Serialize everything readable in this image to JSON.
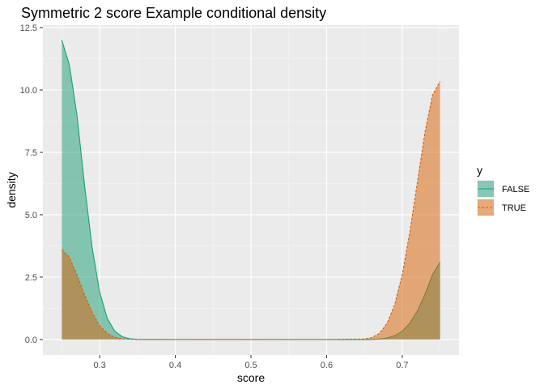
{
  "chart_data": {
    "type": "area",
    "title": "Symmetric 2 score Example conditional density",
    "xlabel": "score",
    "ylabel": "density",
    "xlim": [
      0.225,
      0.775
    ],
    "ylim": [
      -0.62,
      12.6
    ],
    "x_ticks": [
      0.3,
      0.4,
      0.5,
      0.6,
      0.7
    ],
    "x_tick_labels": [
      "0.3",
      "0.4",
      "0.5",
      "0.6",
      "0.7"
    ],
    "y_ticks": [
      0,
      2.5,
      5,
      7.5,
      10,
      12.5
    ],
    "y_tick_labels": [
      "0.0",
      "2.5",
      "5.0",
      "7.5",
      "10.0",
      "12.5"
    ],
    "grid": true,
    "legend": {
      "title": "y",
      "placement": "right",
      "entries": [
        "FALSE",
        "TRUE"
      ]
    },
    "series": [
      {
        "name": "FALSE",
        "line_style": "solid",
        "line_color": "#1b9e77",
        "fill_color": "#1b9e77",
        "x": [
          0.25,
          0.26,
          0.27,
          0.28,
          0.29,
          0.3,
          0.31,
          0.32,
          0.33,
          0.34,
          0.35,
          0.36,
          0.4,
          0.5,
          0.6,
          0.65,
          0.66,
          0.67,
          0.68,
          0.69,
          0.7,
          0.71,
          0.72,
          0.73,
          0.74,
          0.75
        ],
        "values": [
          12.0,
          11.0,
          9.0,
          6.2,
          3.7,
          1.9,
          0.85,
          0.33,
          0.11,
          0.03,
          0.008,
          0.002,
          0.0,
          0.0,
          0.0,
          0.0,
          0.004,
          0.02,
          0.06,
          0.15,
          0.33,
          0.65,
          1.15,
          1.8,
          2.6,
          3.1
        ]
      },
      {
        "name": "TRUE",
        "line_style": "dashed",
        "line_color": "#d95f02",
        "fill_color": "#d95f02",
        "x": [
          0.25,
          0.26,
          0.27,
          0.28,
          0.29,
          0.3,
          0.31,
          0.32,
          0.33,
          0.34,
          0.35,
          0.36,
          0.4,
          0.5,
          0.6,
          0.65,
          0.66,
          0.67,
          0.68,
          0.69,
          0.7,
          0.71,
          0.72,
          0.73,
          0.74,
          0.75
        ],
        "values": [
          3.6,
          3.3,
          2.6,
          1.8,
          1.1,
          0.55,
          0.24,
          0.09,
          0.03,
          0.008,
          0.002,
          0.0,
          0.0,
          0.0,
          0.0,
          0.02,
          0.08,
          0.25,
          0.65,
          1.4,
          2.6,
          4.3,
          6.3,
          8.3,
          9.8,
          10.35
        ]
      }
    ]
  }
}
